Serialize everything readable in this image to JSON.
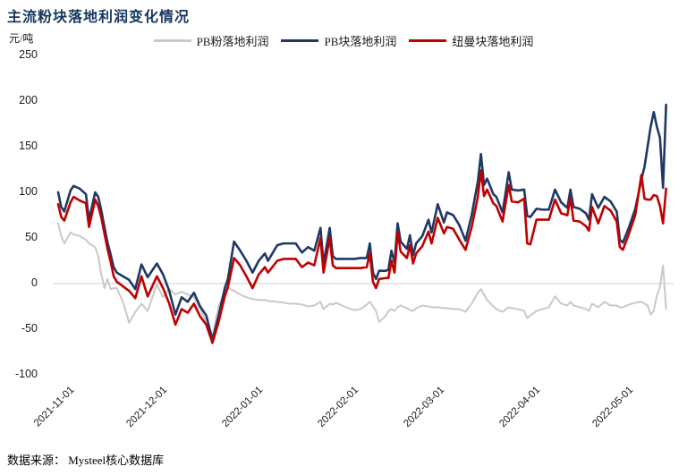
{
  "title": "主流粉块落地利润变化情况",
  "y_axis_unit": "元/吨",
  "footer": {
    "source": "数据来源：  Mysteel核心数据库"
  },
  "chart_data": {
    "type": "line",
    "title": "主流粉块落地利润变化情况",
    "ylabel": "元/吨",
    "ylim": [
      -100,
      250
    ],
    "y_ticks": [
      250,
      200,
      150,
      100,
      50,
      0,
      -50,
      -100
    ],
    "grid": "zero-line-only",
    "legend_position": "top",
    "x_start_date": "2021-11-01",
    "x_tick_labels": [
      "2021-11-01",
      "2021-12-01",
      "2022-01-01",
      "2022-02-01",
      "2022-03-01",
      "2022-04-01",
      "2022-05-01"
    ],
    "x_tick_days": [
      0,
      30,
      61,
      92,
      120,
      151,
      181
    ],
    "days": [
      0,
      1,
      2,
      4,
      5,
      7,
      9,
      10,
      12,
      13,
      14,
      15,
      16,
      17,
      18,
      19,
      21,
      23,
      25,
      27,
      29,
      32,
      34,
      36,
      38,
      40,
      42,
      44,
      46,
      48,
      50,
      52,
      54,
      55,
      57,
      59,
      61,
      63,
      65,
      67,
      68,
      71,
      73,
      75,
      77,
      79,
      81,
      83,
      85,
      86,
      88,
      89,
      90,
      92,
      94,
      96,
      98,
      100,
      101,
      102,
      103,
      104,
      106,
      107,
      108,
      109,
      110,
      111,
      113,
      114,
      115,
      116,
      118,
      120,
      121,
      123,
      125,
      126,
      128,
      130,
      132,
      134,
      136,
      137,
      138,
      139,
      141,
      142,
      144,
      146,
      147,
      149,
      151,
      152,
      153,
      155,
      157,
      159,
      161,
      163,
      165,
      166,
      167,
      169,
      171,
      172,
      173,
      175,
      177,
      179,
      181,
      182,
      183,
      185,
      187,
      189,
      190,
      191,
      192,
      193,
      194,
      195,
      196,
      197
    ],
    "series": [
      {
        "name": "PB粉落地利润",
        "color": "#C9C9C9",
        "values": [
          66,
          52,
          44,
          56,
          54,
          52,
          48,
          44,
          40,
          30,
          10,
          -5,
          5,
          -6,
          -5,
          -5,
          -20,
          -43,
          -31,
          -22,
          -30,
          -1,
          -15,
          -6,
          -12,
          -9,
          -12,
          -15,
          -28,
          -42,
          -57,
          -25,
          -8,
          -5,
          -8,
          -12,
          -15,
          -17,
          -18,
          -18,
          -19,
          -20,
          -21,
          -22,
          -22,
          -23,
          -25,
          -24,
          -20,
          -28,
          -22,
          -23,
          -21,
          -24,
          -27,
          -29,
          -28,
          -23,
          -20,
          -25,
          -30,
          -42,
          -36,
          -30,
          -28,
          -30,
          -26,
          -24,
          -27,
          -29,
          -30,
          -27,
          -24,
          -25,
          -26,
          -26,
          -27,
          -27,
          -28,
          -28,
          -31,
          -22,
          -10,
          -6,
          -12,
          -18,
          -25,
          -28,
          -31,
          -26,
          -27,
          -28,
          -30,
          -38,
          -35,
          -30,
          -28,
          -26,
          -14,
          -22,
          -24,
          -20,
          -24,
          -26,
          -28,
          -30,
          -22,
          -26,
          -20,
          -24,
          -24,
          -26,
          -26,
          -23,
          -21,
          -20,
          -22,
          -24,
          -34,
          -30,
          -13,
          -4,
          20,
          -28
        ]
      },
      {
        "name": "PB块落地利润",
        "color": "#1F3864",
        "values": [
          100,
          84,
          79,
          102,
          107,
          104,
          98,
          70,
          100,
          95,
          80,
          62,
          45,
          32,
          18,
          12,
          8,
          4,
          -6,
          21,
          7,
          22,
          10,
          -8,
          -34,
          -15,
          -20,
          -10,
          -25,
          -35,
          -62,
          -35,
          -5,
          5,
          46,
          36,
          25,
          12,
          25,
          33,
          25,
          42,
          44,
          44,
          44,
          34,
          40,
          36,
          61,
          22,
          61,
          30,
          27,
          27,
          27,
          27,
          28,
          28,
          44,
          12,
          5,
          14,
          14,
          15,
          36,
          23,
          66,
          46,
          38,
          53,
          31,
          44,
          52,
          70,
          56,
          87,
          67,
          78,
          75,
          64,
          47,
          75,
          112,
          142,
          108,
          115,
          98,
          95,
          78,
          122,
          103,
          102,
          103,
          74,
          73,
          82,
          81,
          81,
          103,
          89,
          83,
          103,
          84,
          82,
          77,
          70,
          98,
          83,
          95,
          90,
          79,
          48,
          45,
          62,
          82,
          114,
          128,
          150,
          172,
          188,
          172,
          160,
          105,
          196
        ]
      },
      {
        "name": "纽曼块落地利润",
        "color": "#C00000",
        "values": [
          87,
          73,
          69,
          89,
          95,
          91,
          88,
          62,
          92,
          85,
          72,
          55,
          38,
          24,
          8,
          2,
          -3,
          -8,
          -16,
          8,
          -14,
          8,
          -5,
          -22,
          -45,
          -28,
          -32,
          -22,
          -36,
          -45,
          -65,
          -42,
          -14,
          -4,
          28,
          20,
          8,
          -5,
          10,
          18,
          12,
          25,
          27,
          27,
          27,
          18,
          23,
          20,
          50,
          12,
          50,
          20,
          17,
          17,
          17,
          17,
          17,
          18,
          33,
          2,
          -5,
          5,
          6,
          6,
          25,
          12,
          56,
          35,
          28,
          42,
          22,
          33,
          41,
          57,
          44,
          72,
          55,
          62,
          60,
          48,
          37,
          62,
          95,
          124,
          96,
          103,
          88,
          85,
          68,
          108,
          90,
          89,
          93,
          44,
          43,
          70,
          70,
          70,
          92,
          77,
          75,
          94,
          69,
          68,
          63,
          58,
          84,
          66,
          85,
          80,
          68,
          40,
          37,
          55,
          75,
          119,
          93,
          92,
          92,
          97,
          96,
          85,
          66,
          104
        ]
      }
    ]
  }
}
